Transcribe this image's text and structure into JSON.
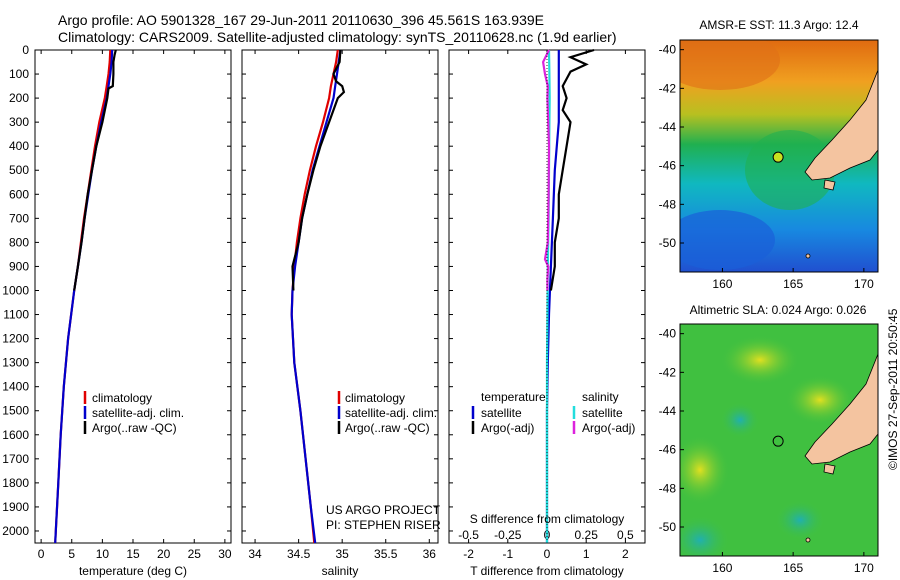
{
  "titles": {
    "line1": "Argo profile: AO 5901328_167 29-Jun-2011 20110630_396 45.561S 163.939E",
    "line2": "Climatology: CARS2009. Satellite-adjusted climatology: synTS_20110628.nc (1.9d earlier)"
  },
  "stamp": "©IMOS 27-Sep-2011 20:50:45",
  "colors": {
    "climatology": "#e00000",
    "satellite": "#0000cc",
    "argo": "#000000",
    "sat_salinity": "#22dddd",
    "argo_salinity": "#dd22dd"
  },
  "chart_data": [
    {
      "id": "temperature",
      "type": "line",
      "xlabel": "temperature (deg C)",
      "ylabel": "",
      "xlim": [
        -1,
        31
      ],
      "ylim": [
        2050,
        0
      ],
      "xticks": [
        0,
        5,
        10,
        15,
        20,
        25,
        30
      ],
      "yticks": [
        0,
        100,
        200,
        300,
        400,
        500,
        600,
        700,
        800,
        900,
        1000,
        1100,
        1200,
        1300,
        1400,
        1500,
        1600,
        1700,
        1800,
        1900,
        2000
      ],
      "legend": [
        "climatology",
        "satellite-adj. clim.",
        "Argo(..raw -QC)"
      ],
      "series": [
        {
          "name": "climatology",
          "color": "#e00000",
          "depth": [
            0,
            50,
            100,
            150,
            200,
            300,
            400,
            500,
            600,
            700,
            800,
            900,
            1000,
            1200,
            1400,
            1600,
            1800,
            2000,
            2050
          ],
          "values": [
            11.3,
            11.2,
            11.0,
            10.7,
            10.4,
            9.5,
            8.8,
            8.2,
            7.6,
            7.0,
            6.5,
            6.0,
            5.4,
            4.4,
            3.7,
            3.2,
            2.8,
            2.4,
            2.3
          ]
        },
        {
          "name": "satellite-adj. clim.",
          "color": "#0000cc",
          "depth": [
            0,
            50,
            100,
            150,
            200,
            300,
            400,
            500,
            600,
            700,
            800,
            900,
            1000,
            1200,
            1400,
            1600,
            1800,
            2000,
            2050
          ],
          "values": [
            11.6,
            11.5,
            11.3,
            11.0,
            10.7,
            9.8,
            9.0,
            8.3,
            7.7,
            7.1,
            6.6,
            6.0,
            5.4,
            4.4,
            3.7,
            3.2,
            2.8,
            2.4,
            2.3
          ]
        },
        {
          "name": "Argo(..raw -QC)",
          "color": "#000000",
          "depth": [
            0,
            20,
            50,
            100,
            150,
            160,
            200,
            300,
            400,
            500,
            600,
            700,
            800,
            900,
            1000
          ],
          "values": [
            12.2,
            12.0,
            11.8,
            11.8,
            11.7,
            11.0,
            10.8,
            10.0,
            9.0,
            8.3,
            7.6,
            7.1,
            6.6,
            6.0,
            5.4
          ]
        }
      ]
    },
    {
      "id": "salinity",
      "type": "line",
      "xlabel": "salinity",
      "ylabel": "",
      "xlim": [
        33.85,
        36.1
      ],
      "ylim": [
        2050,
        0
      ],
      "xticks": [
        34,
        34.5,
        35,
        35.5,
        36
      ],
      "legend": [
        "climatology",
        "satellite-adj. clim.",
        "Argo(..raw -QC)"
      ],
      "annotations": [
        "US ARGO PROJECT",
        "PI: STEPHEN RISER"
      ],
      "series": [
        {
          "name": "climatology",
          "color": "#e00000",
          "depth": [
            0,
            50,
            100,
            150,
            200,
            300,
            400,
            500,
            600,
            700,
            800,
            900,
            1000,
            1100,
            1300,
            1500,
            1700,
            1900,
            2050
          ],
          "values": [
            34.95,
            34.93,
            34.9,
            34.87,
            34.85,
            34.78,
            34.7,
            34.63,
            34.57,
            34.52,
            34.48,
            34.45,
            34.43,
            34.42,
            34.45,
            34.52,
            34.58,
            34.64,
            34.68
          ]
        },
        {
          "name": "satellite-adj. clim.",
          "color": "#0000cc",
          "depth": [
            0,
            50,
            100,
            150,
            200,
            300,
            400,
            500,
            600,
            700,
            800,
            900,
            1000,
            1100,
            1300,
            1500,
            1700,
            1900,
            2050
          ],
          "values": [
            34.98,
            34.96,
            34.94,
            34.92,
            34.9,
            34.82,
            34.74,
            34.66,
            34.6,
            34.54,
            34.5,
            34.46,
            34.43,
            34.42,
            34.45,
            34.52,
            34.58,
            34.64,
            34.69
          ]
        },
        {
          "name": "Argo(..raw -QC)",
          "color": "#000000",
          "depth": [
            0,
            50,
            100,
            130,
            150,
            175,
            200,
            300,
            400,
            500,
            600,
            700,
            800,
            900,
            1000
          ],
          "values": [
            34.98,
            34.97,
            34.9,
            34.93,
            35.0,
            35.02,
            34.95,
            34.85,
            34.75,
            34.67,
            34.6,
            34.54,
            34.5,
            34.43,
            34.44
          ]
        }
      ]
    },
    {
      "id": "difference",
      "type": "line",
      "xlabel": "T difference from climatology",
      "xlabel_top": "S difference from climatology",
      "xlim": [
        -2.5,
        2.5
      ],
      "ylim": [
        2050,
        0
      ],
      "xticks": [
        -2,
        -1,
        0,
        1,
        2
      ],
      "xticks_top": [
        "-0.5",
        "-0.25",
        "0",
        "0.25",
        "0.5"
      ],
      "legend_titles": [
        "temperature",
        "salinity"
      ],
      "legend": [
        "satellite",
        "Argo(-adj)",
        "satellite",
        "Argo(-adj)"
      ],
      "series": [
        {
          "name": "temperature satellite",
          "color": "#0000cc",
          "depth": [
            0,
            100,
            200,
            300,
            500,
            700,
            900,
            1100,
            1300,
            1500,
            1700,
            1900,
            2050
          ],
          "values": [
            0.3,
            0.3,
            0.3,
            0.3,
            0.2,
            0.15,
            0.1,
            0.05,
            0.02,
            0,
            0,
            0,
            0
          ]
        },
        {
          "name": "temperature Argo(-adj)",
          "color": "#000000",
          "depth": [
            0,
            30,
            60,
            90,
            120,
            150,
            200,
            250,
            300,
            400,
            500,
            600,
            700,
            800,
            900,
            1000
          ],
          "values": [
            1.2,
            0.6,
            1.0,
            0.6,
            0.5,
            0.4,
            0.5,
            0.4,
            0.6,
            0.5,
            0.4,
            0.3,
            0.3,
            0.2,
            0.2,
            0.1
          ]
        },
        {
          "name": "salinity satellite",
          "color": "#22dddd",
          "depth": [
            0,
            100,
            200,
            300,
            500,
            700,
            900,
            1100,
            1300,
            1500,
            1700,
            1900,
            2050
          ],
          "values": [
            0.05,
            0.06,
            0.07,
            0.06,
            0.05,
            0.04,
            0.02,
            0.01,
            0,
            0,
            0,
            0,
            0
          ]
        },
        {
          "name": "salinity Argo(-adj)",
          "color": "#dd22dd",
          "depth": [
            0,
            50,
            100,
            150,
            200,
            400,
            600,
            700,
            800,
            870,
            900,
            950,
            1000
          ],
          "values": [
            0.05,
            -0.1,
            -0.05,
            0.02,
            0.01,
            0.05,
            0.04,
            0.03,
            0.02,
            -0.05,
            0.03,
            0.01,
            0.01
          ]
        }
      ]
    },
    {
      "id": "sst_map",
      "type": "heatmap",
      "title": "AMSR-E SST: 11.3 Argo: 12.4",
      "xlim": [
        157,
        171
      ],
      "ylim": [
        -51.5,
        -39.5
      ],
      "xticks": [
        160,
        165,
        170
      ],
      "yticks": [
        -40,
        -42,
        -44,
        -46,
        -48,
        -50
      ],
      "argo_location": [
        163.939,
        -45.561
      ]
    },
    {
      "id": "sla_map",
      "type": "heatmap",
      "title": "Altimetric SLA: 0.024 Argo: 0.026",
      "xlim": [
        157,
        171
      ],
      "ylim": [
        -51.5,
        -39.5
      ],
      "xticks": [
        160,
        165,
        170
      ],
      "yticks": [
        -40,
        -42,
        -44,
        -46,
        -48,
        -50
      ],
      "argo_location": [
        163.939,
        -45.561
      ]
    }
  ]
}
